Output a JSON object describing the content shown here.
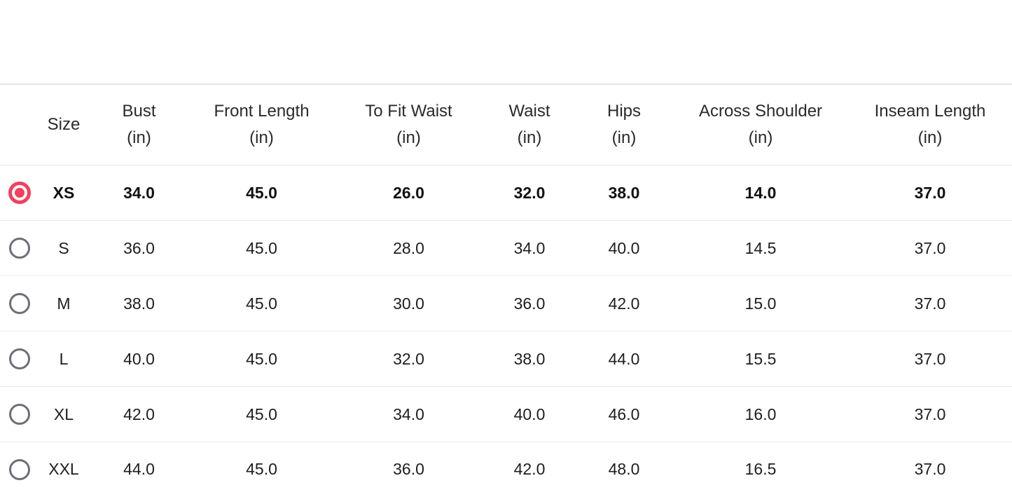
{
  "accent_color": "#f43f5e",
  "radio_unselected_color": "#6e6e78",
  "size_chart": {
    "columns": [
      {
        "label": "Size",
        "unit": ""
      },
      {
        "label": "Bust",
        "unit": "(in)"
      },
      {
        "label": "Front Length",
        "unit": "(in)"
      },
      {
        "label": "To Fit Waist",
        "unit": "(in)"
      },
      {
        "label": "Waist",
        "unit": "(in)"
      },
      {
        "label": "Hips",
        "unit": "(in)"
      },
      {
        "label": "Across Shoulder",
        "unit": "(in)"
      },
      {
        "label": "Inseam Length",
        "unit": "(in)"
      }
    ],
    "rows": [
      {
        "size": "XS",
        "selected": true,
        "values": [
          "34.0",
          "45.0",
          "26.0",
          "32.0",
          "38.0",
          "14.0",
          "37.0"
        ]
      },
      {
        "size": "S",
        "selected": false,
        "values": [
          "36.0",
          "45.0",
          "28.0",
          "34.0",
          "40.0",
          "14.5",
          "37.0"
        ]
      },
      {
        "size": "M",
        "selected": false,
        "values": [
          "38.0",
          "45.0",
          "30.0",
          "36.0",
          "42.0",
          "15.0",
          "37.0"
        ]
      },
      {
        "size": "L",
        "selected": false,
        "values": [
          "40.0",
          "45.0",
          "32.0",
          "38.0",
          "44.0",
          "15.5",
          "37.0"
        ]
      },
      {
        "size": "XL",
        "selected": false,
        "values": [
          "42.0",
          "45.0",
          "34.0",
          "40.0",
          "46.0",
          "16.0",
          "37.0"
        ]
      },
      {
        "size": "XXL",
        "selected": false,
        "values": [
          "44.0",
          "45.0",
          "36.0",
          "42.0",
          "48.0",
          "16.5",
          "37.0"
        ]
      }
    ]
  }
}
